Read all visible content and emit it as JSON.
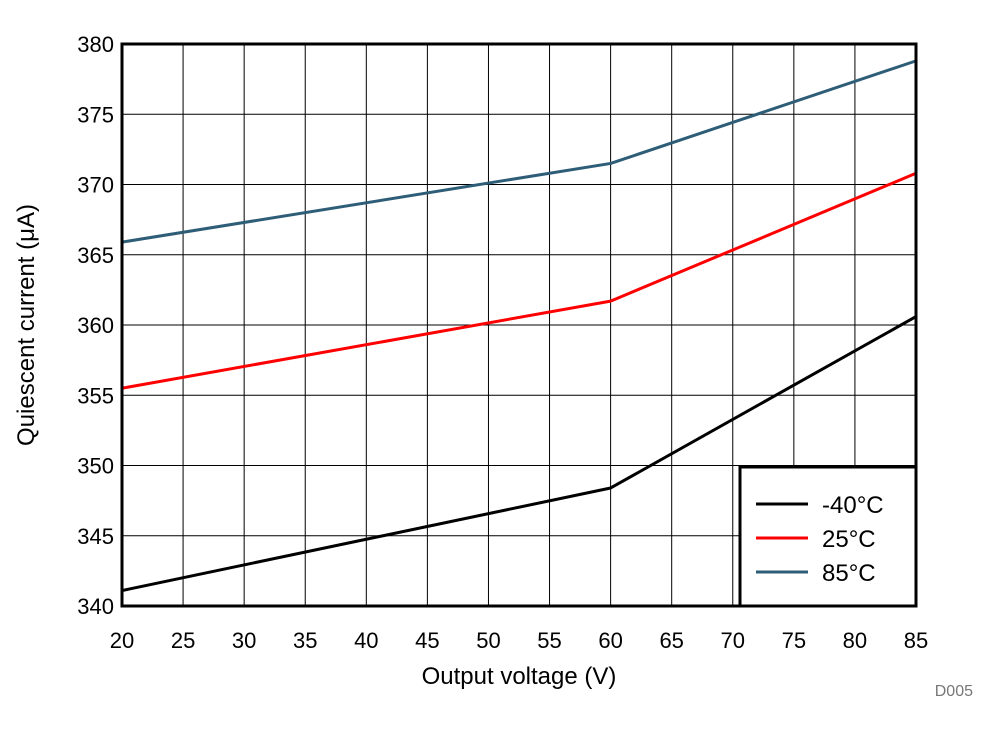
{
  "chart_data": {
    "type": "line",
    "title": "",
    "xlabel": "Output voltage (V)",
    "ylabel": "Quiescent current (μA)",
    "xlim": [
      20,
      85
    ],
    "ylim": [
      340,
      380
    ],
    "x_ticks": [
      20,
      25,
      30,
      35,
      40,
      45,
      50,
      55,
      60,
      65,
      70,
      75,
      80,
      85
    ],
    "y_ticks": [
      340,
      345,
      350,
      355,
      360,
      365,
      370,
      375,
      380
    ],
    "grid": true,
    "legend_position": "bottom-right",
    "series": [
      {
        "name": "-40°C",
        "color": "#000000",
        "x": [
          20,
          60,
          85
        ],
        "y": [
          341.1,
          348.4,
          360.6
        ]
      },
      {
        "name": "25°C",
        "color": "#ff0000",
        "x": [
          20,
          60,
          85
        ],
        "y": [
          355.5,
          361.7,
          370.8
        ]
      },
      {
        "name": "85°C",
        "color": "#2e5d78",
        "x": [
          20,
          60,
          85
        ],
        "y": [
          365.9,
          371.5,
          378.8
        ]
      }
    ],
    "footnote": "D005"
  }
}
